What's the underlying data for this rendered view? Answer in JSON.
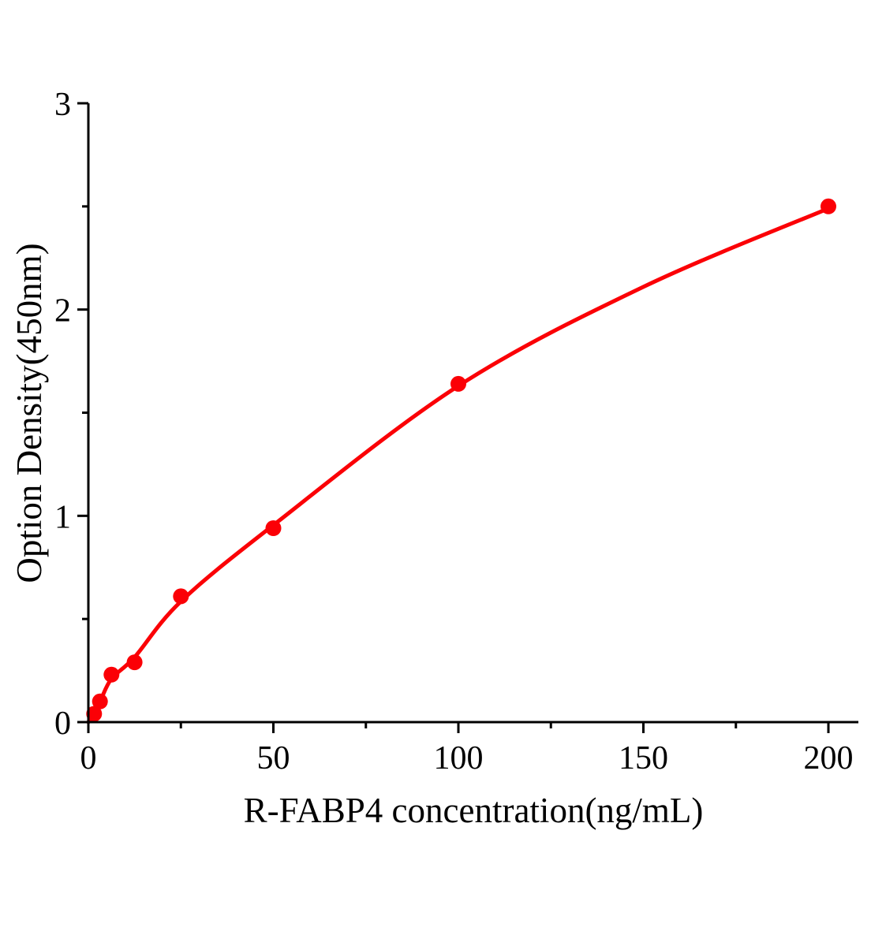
{
  "chart_data": {
    "type": "scatter",
    "title": "",
    "xlabel": "R-FABP4 concentration(ng/mL)",
    "ylabel": "Option Density(450nm)",
    "x": [
      1.5625,
      3.125,
      6.25,
      12.5,
      25,
      50,
      100,
      200
    ],
    "y": [
      0.04,
      0.1,
      0.23,
      0.29,
      0.61,
      0.94,
      1.64,
      2.5
    ],
    "fit_curve": {
      "x": [
        0,
        3.125,
        6.25,
        12.5,
        25,
        50,
        100,
        150,
        200
      ],
      "y": [
        0,
        0.1,
        0.21,
        0.315,
        0.585,
        0.955,
        1.63,
        2.11,
        2.49
      ]
    },
    "xlim": [
      0,
      200
    ],
    "ylim": [
      0,
      3
    ],
    "x_major_ticks": [
      0,
      50,
      100,
      150,
      200
    ],
    "x_minor_ticks": [
      25,
      75,
      125,
      175
    ],
    "y_major_ticks": [
      0,
      1,
      2,
      3
    ],
    "y_minor_ticks": [
      0.5,
      1.5,
      2.5
    ],
    "grid": false,
    "legend": "none",
    "colors": {
      "curve": "#fb0006",
      "marker": "#fb0006",
      "axis": "#000000",
      "text": "#000000"
    }
  }
}
